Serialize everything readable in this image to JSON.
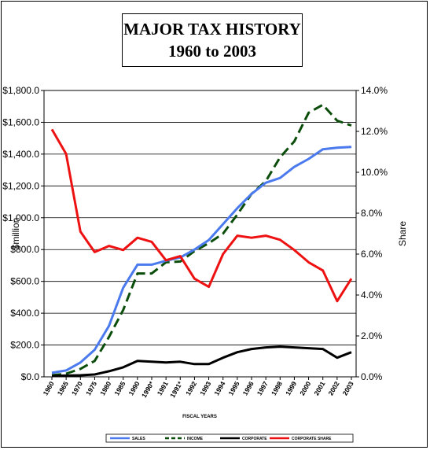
{
  "title_line1": "MAJOR TAX HISTORY",
  "title_line2": "1960 to  2003",
  "chart_data": {
    "type": "line",
    "title": "MAJOR TAX HISTORY 1960 to  2003",
    "xlabel": "FISCAL YEARS",
    "ylabel_left": "$million",
    "ylabel_right": "Share",
    "categories": [
      "1960",
      "1965",
      "1970",
      "1975",
      "1980",
      "1985",
      "1990",
      "1990*",
      "1991",
      "1991*",
      "1992",
      "1993",
      "1994",
      "1995",
      "1996",
      "1997",
      "1998",
      "1999",
      "2000",
      "2001",
      "2002",
      "2003"
    ],
    "ylim_left": [
      0,
      1800
    ],
    "ylim_right": [
      0,
      14
    ],
    "left_ticks": [
      "$0.0",
      "$200.0",
      "$400.0",
      "$600.0",
      "$800.0",
      "$1,000.0",
      "$1,200.0",
      "$1,400.0",
      "$1,600.0",
      "$1,800.0"
    ],
    "right_ticks": [
      "0.0%",
      "2.0%",
      "4.0%",
      "6.0%",
      "8.0%",
      "10.0%",
      "12.0%",
      "14.0%"
    ],
    "grid": true,
    "legend_position": "bottom",
    "series": [
      {
        "name": "SALES",
        "axis": "left",
        "color": "#4a7aee",
        "dash": "solid",
        "values": [
          25,
          40,
          90,
          170,
          320,
          560,
          705,
          705,
          730,
          750,
          800,
          860,
          960,
          1060,
          1150,
          1220,
          1250,
          1320,
          1370,
          1430,
          1440,
          1445
        ]
      },
      {
        "name": "INCOME",
        "axis": "left",
        "color": "#0b4d0b",
        "dash": "dashed",
        "values": [
          10,
          20,
          50,
          100,
          250,
          420,
          650,
          650,
          720,
          725,
          790,
          840,
          900,
          1020,
          1150,
          1230,
          1380,
          1480,
          1660,
          1710,
          1610,
          1580
        ]
      },
      {
        "name": "CORPORATE",
        "axis": "left",
        "color": "#000000",
        "dash": "solid",
        "values": [
          5,
          8,
          10,
          15,
          35,
          60,
          100,
          95,
          90,
          95,
          80,
          80,
          120,
          155,
          175,
          185,
          190,
          185,
          180,
          175,
          120,
          155
        ]
      },
      {
        "name": "CORPORATE SHARE",
        "axis": "right",
        "color": "#ee1111",
        "dash": "solid",
        "values": [
          12.1,
          10.9,
          7.1,
          6.1,
          6.4,
          6.2,
          6.8,
          6.6,
          5.7,
          5.9,
          4.8,
          4.4,
          6.0,
          6.9,
          6.8,
          6.9,
          6.7,
          6.2,
          5.6,
          5.2,
          3.7,
          4.8
        ]
      }
    ]
  }
}
